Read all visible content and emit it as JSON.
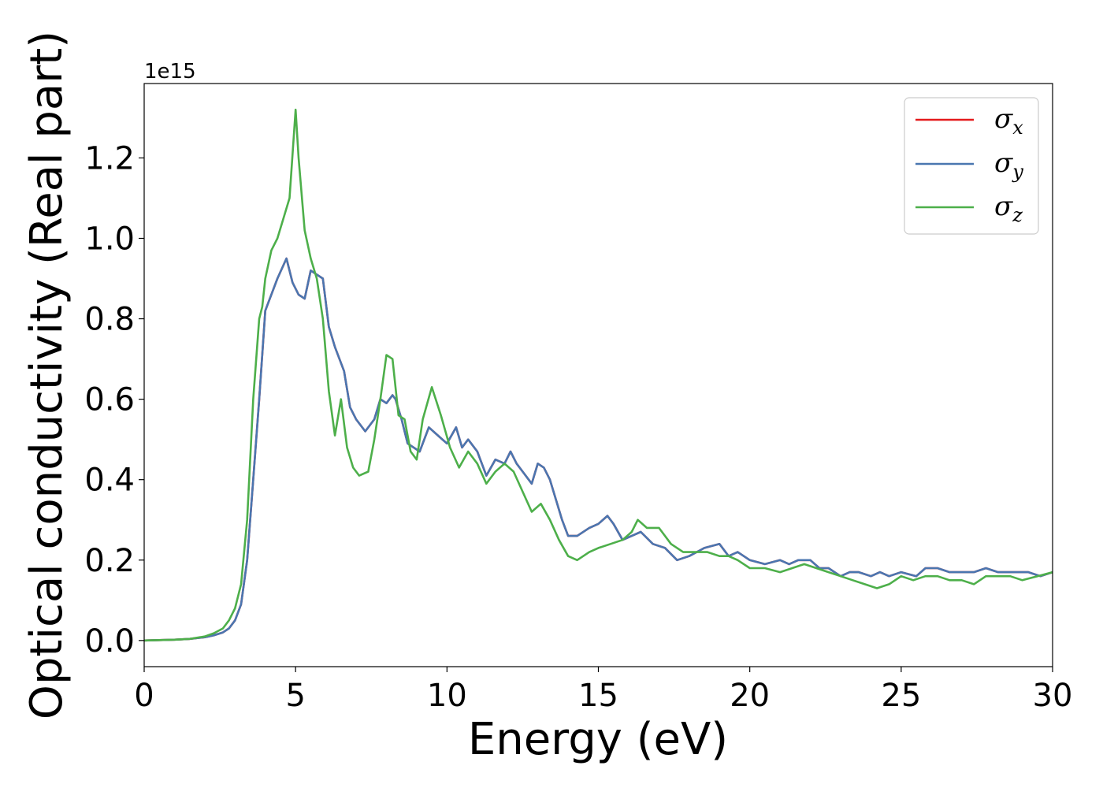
{
  "chart_data": {
    "type": "line",
    "title": "",
    "xlabel": "Energy (eV)",
    "ylabel": "Optical conductivity (Real part)",
    "y_offset_label": "1e15",
    "xlim": [
      0,
      30
    ],
    "ylim": [
      -0.065,
      1.385
    ],
    "x_ticks": [
      0,
      5,
      10,
      15,
      20,
      25,
      30
    ],
    "x_tick_labels": [
      "0",
      "5",
      "10",
      "15",
      "20",
      "25",
      "30"
    ],
    "y_ticks": [
      0.0,
      0.2,
      0.4,
      0.6,
      0.8,
      1.0,
      1.2
    ],
    "y_tick_labels": [
      "0.0",
      "0.2",
      "0.4",
      "0.6",
      "0.8",
      "1.0",
      "1.2"
    ],
    "grid": false,
    "legend_position": "top-right",
    "series": [
      {
        "name": "σx",
        "symbol": "σ",
        "subscript": "x",
        "color": "#e41a1c",
        "x": [
          0,
          1,
          1.5,
          2,
          2.3,
          2.6,
          2.8,
          3.0,
          3.2,
          3.4,
          3.6,
          3.8,
          4.0,
          4.2,
          4.4,
          4.7,
          4.9,
          5.1,
          5.3,
          5.5,
          5.7,
          5.9,
          6.1,
          6.3,
          6.6,
          6.8,
          7.0,
          7.3,
          7.6,
          7.8,
          8.0,
          8.2,
          8.3,
          8.5,
          8.7,
          8.9,
          9.1,
          9.4,
          9.7,
          10.0,
          10.3,
          10.5,
          10.7,
          11.0,
          11.3,
          11.6,
          11.9,
          12.1,
          12.3,
          12.5,
          12.8,
          13.0,
          13.2,
          13.4,
          13.6,
          13.8,
          14.0,
          14.3,
          14.7,
          15.0,
          15.3,
          15.5,
          15.8,
          16.1,
          16.4,
          16.8,
          17.2,
          17.6,
          18.0,
          18.5,
          19.0,
          19.3,
          19.6,
          20.0,
          20.5,
          21.0,
          21.3,
          21.6,
          22.0,
          22.3,
          22.6,
          23.0,
          23.3,
          23.6,
          24.0,
          24.3,
          24.6,
          25.0,
          25.5,
          25.8,
          26.2,
          26.6,
          27.0,
          27.4,
          27.8,
          28.2,
          28.5,
          28.8,
          29.2,
          29.6,
          30.0
        ],
        "y": [
          0,
          0.002,
          0.004,
          0.008,
          0.013,
          0.02,
          0.03,
          0.05,
          0.09,
          0.2,
          0.4,
          0.6,
          0.82,
          0.86,
          0.9,
          0.95,
          0.89,
          0.86,
          0.85,
          0.92,
          0.91,
          0.9,
          0.78,
          0.73,
          0.67,
          0.58,
          0.55,
          0.52,
          0.55,
          0.6,
          0.59,
          0.61,
          0.6,
          0.55,
          0.49,
          0.48,
          0.47,
          0.53,
          0.51,
          0.49,
          0.53,
          0.48,
          0.5,
          0.47,
          0.41,
          0.45,
          0.44,
          0.47,
          0.44,
          0.42,
          0.39,
          0.44,
          0.43,
          0.4,
          0.35,
          0.3,
          0.26,
          0.26,
          0.28,
          0.29,
          0.31,
          0.29,
          0.25,
          0.26,
          0.27,
          0.24,
          0.23,
          0.2,
          0.21,
          0.23,
          0.24,
          0.21,
          0.22,
          0.2,
          0.19,
          0.2,
          0.19,
          0.2,
          0.2,
          0.18,
          0.18,
          0.16,
          0.17,
          0.17,
          0.16,
          0.17,
          0.16,
          0.17,
          0.16,
          0.18,
          0.18,
          0.17,
          0.17,
          0.17,
          0.18,
          0.17,
          0.17,
          0.17,
          0.17,
          0.16,
          0.17
        ]
      },
      {
        "name": "σy",
        "symbol": "σ",
        "subscript": "y",
        "color": "#4a76b0",
        "x": [
          0,
          1,
          1.5,
          2,
          2.3,
          2.6,
          2.8,
          3.0,
          3.2,
          3.4,
          3.6,
          3.8,
          4.0,
          4.2,
          4.4,
          4.7,
          4.9,
          5.1,
          5.3,
          5.5,
          5.7,
          5.9,
          6.1,
          6.3,
          6.6,
          6.8,
          7.0,
          7.3,
          7.6,
          7.8,
          8.0,
          8.2,
          8.3,
          8.5,
          8.7,
          8.9,
          9.1,
          9.4,
          9.7,
          10.0,
          10.3,
          10.5,
          10.7,
          11.0,
          11.3,
          11.6,
          11.9,
          12.1,
          12.3,
          12.5,
          12.8,
          13.0,
          13.2,
          13.4,
          13.6,
          13.8,
          14.0,
          14.3,
          14.7,
          15.0,
          15.3,
          15.5,
          15.8,
          16.1,
          16.4,
          16.8,
          17.2,
          17.6,
          18.0,
          18.5,
          19.0,
          19.3,
          19.6,
          20.0,
          20.5,
          21.0,
          21.3,
          21.6,
          22.0,
          22.3,
          22.6,
          23.0,
          23.3,
          23.6,
          24.0,
          24.3,
          24.6,
          25.0,
          25.5,
          25.8,
          26.2,
          26.6,
          27.0,
          27.4,
          27.8,
          28.2,
          28.5,
          28.8,
          29.2,
          29.6,
          30.0
        ],
        "y": [
          0,
          0.002,
          0.004,
          0.008,
          0.013,
          0.02,
          0.03,
          0.05,
          0.09,
          0.2,
          0.4,
          0.6,
          0.82,
          0.86,
          0.9,
          0.95,
          0.89,
          0.86,
          0.85,
          0.92,
          0.91,
          0.9,
          0.78,
          0.73,
          0.67,
          0.58,
          0.55,
          0.52,
          0.55,
          0.6,
          0.59,
          0.61,
          0.6,
          0.55,
          0.49,
          0.48,
          0.47,
          0.53,
          0.51,
          0.49,
          0.53,
          0.48,
          0.5,
          0.47,
          0.41,
          0.45,
          0.44,
          0.47,
          0.44,
          0.42,
          0.39,
          0.44,
          0.43,
          0.4,
          0.35,
          0.3,
          0.26,
          0.26,
          0.28,
          0.29,
          0.31,
          0.29,
          0.25,
          0.26,
          0.27,
          0.24,
          0.23,
          0.2,
          0.21,
          0.23,
          0.24,
          0.21,
          0.22,
          0.2,
          0.19,
          0.2,
          0.19,
          0.2,
          0.2,
          0.18,
          0.18,
          0.16,
          0.17,
          0.17,
          0.16,
          0.17,
          0.16,
          0.17,
          0.16,
          0.18,
          0.18,
          0.17,
          0.17,
          0.17,
          0.18,
          0.17,
          0.17,
          0.17,
          0.17,
          0.16,
          0.17
        ]
      },
      {
        "name": "σz",
        "symbol": "σ",
        "subscript": "z",
        "color": "#4daf4a",
        "x": [
          0,
          1,
          1.5,
          2,
          2.3,
          2.6,
          2.8,
          3.0,
          3.2,
          3.4,
          3.6,
          3.8,
          3.9,
          4.0,
          4.2,
          4.4,
          4.6,
          4.8,
          5.0,
          5.1,
          5.3,
          5.5,
          5.7,
          5.9,
          6.1,
          6.3,
          6.5,
          6.7,
          6.9,
          7.1,
          7.4,
          7.6,
          7.8,
          8.0,
          8.2,
          8.4,
          8.6,
          8.8,
          9.0,
          9.2,
          9.5,
          9.8,
          10.1,
          10.4,
          10.7,
          11.0,
          11.3,
          11.6,
          11.9,
          12.2,
          12.5,
          12.8,
          13.1,
          13.4,
          13.7,
          14.0,
          14.3,
          14.7,
          15.0,
          15.4,
          15.8,
          16.1,
          16.3,
          16.6,
          17.0,
          17.4,
          17.8,
          18.2,
          18.6,
          19.0,
          19.3,
          19.6,
          20.0,
          20.5,
          21.0,
          21.4,
          21.8,
          22.2,
          22.6,
          23.0,
          23.4,
          23.8,
          24.2,
          24.6,
          25.0,
          25.4,
          25.8,
          26.2,
          26.6,
          27.0,
          27.4,
          27.8,
          28.2,
          28.6,
          29.0,
          29.5,
          30.0
        ],
        "y": [
          0,
          0.002,
          0.004,
          0.01,
          0.018,
          0.03,
          0.05,
          0.08,
          0.14,
          0.3,
          0.6,
          0.8,
          0.83,
          0.9,
          0.97,
          1.0,
          1.05,
          1.1,
          1.32,
          1.2,
          1.02,
          0.95,
          0.9,
          0.8,
          0.62,
          0.51,
          0.6,
          0.48,
          0.43,
          0.41,
          0.42,
          0.5,
          0.6,
          0.71,
          0.7,
          0.56,
          0.55,
          0.47,
          0.45,
          0.55,
          0.63,
          0.56,
          0.48,
          0.43,
          0.47,
          0.44,
          0.39,
          0.42,
          0.44,
          0.42,
          0.37,
          0.32,
          0.34,
          0.3,
          0.25,
          0.21,
          0.2,
          0.22,
          0.23,
          0.24,
          0.25,
          0.27,
          0.3,
          0.28,
          0.28,
          0.24,
          0.22,
          0.22,
          0.22,
          0.21,
          0.21,
          0.2,
          0.18,
          0.18,
          0.17,
          0.18,
          0.19,
          0.18,
          0.17,
          0.16,
          0.15,
          0.14,
          0.13,
          0.14,
          0.16,
          0.15,
          0.16,
          0.16,
          0.15,
          0.15,
          0.14,
          0.16,
          0.16,
          0.16,
          0.15,
          0.16,
          0.17
        ]
      }
    ]
  }
}
